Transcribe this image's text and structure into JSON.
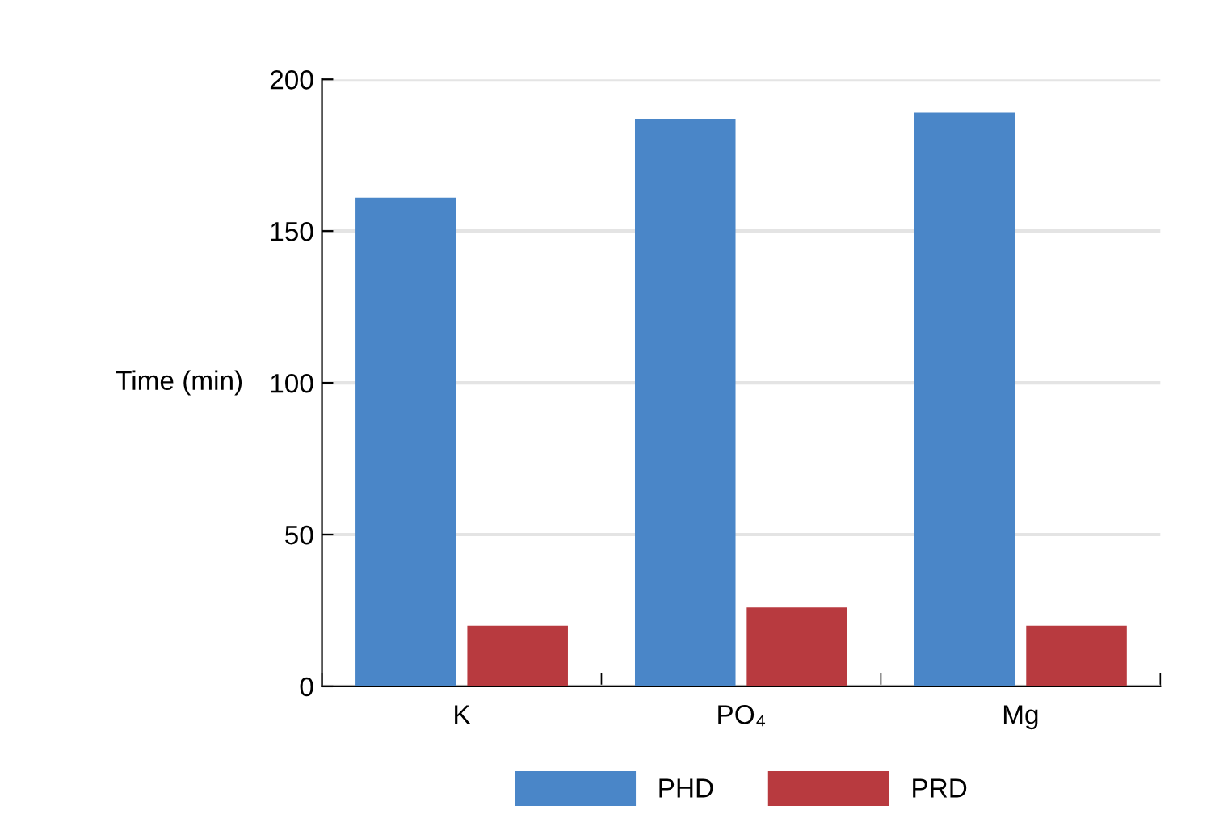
{
  "chart_data": {
    "type": "bar",
    "ylabel": "Time (min)",
    "categories": [
      "K",
      "PO₄",
      "Mg"
    ],
    "series": [
      {
        "name": "PHD",
        "color": "#4a86c8",
        "values": [
          161,
          187,
          189
        ]
      },
      {
        "name": "PRD",
        "color": "#b83a3f",
        "values": [
          20,
          26,
          20
        ]
      }
    ],
    "ylim": [
      0,
      200
    ],
    "yticks": [
      0,
      50,
      100,
      150,
      200
    ],
    "grid": "y",
    "legend": "bottom"
  }
}
